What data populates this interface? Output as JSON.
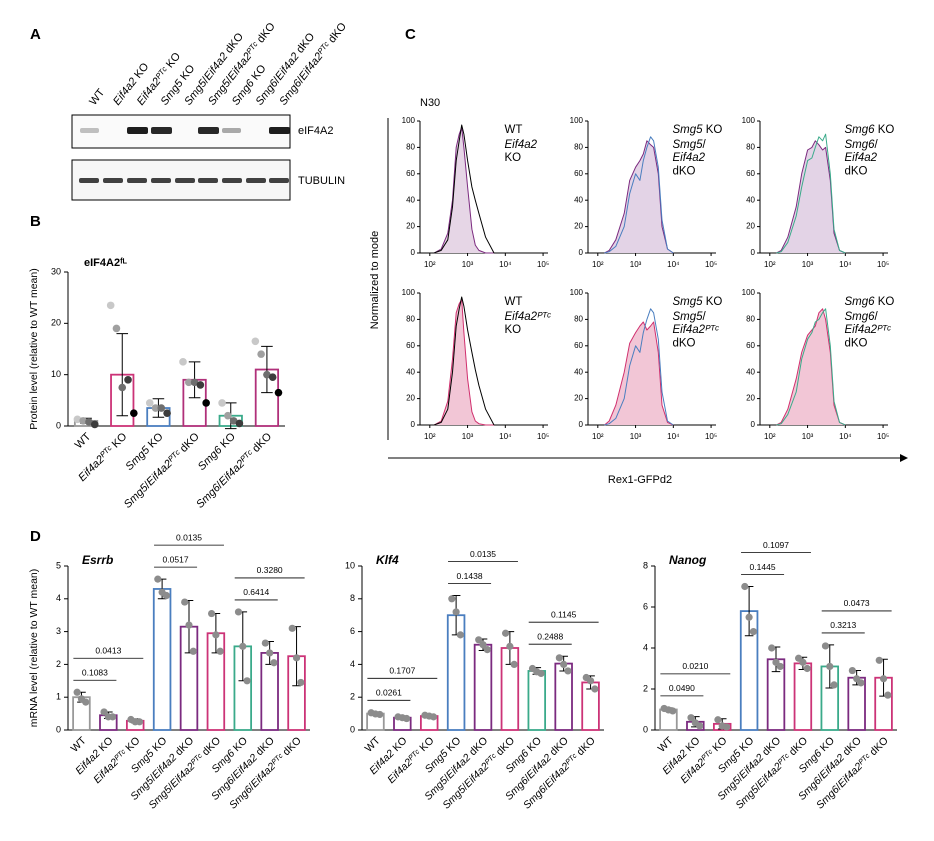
{
  "panel_labels": [
    "A",
    "B",
    "C",
    "D"
  ],
  "blot": {
    "lanes": [
      "WT",
      "Eif4a2 KO",
      "Eif4a2ᴾᵀᶜ KO",
      "Smg5 KO",
      "Smg5/Eif4a2 dKO",
      "Smg5/Eif4a2ᴾᵀᶜ dKO",
      "Smg6 KO",
      "Smg6/Eif4a2 dKO",
      "Smg6/Eif4a2ᴾᵀᶜ dKO"
    ],
    "bands": [
      "eIF4A2",
      "TUBULIN"
    ]
  },
  "flow_common": {
    "annotation": "N30",
    "y_label": "Normalized to mode",
    "x_label": "Rex1-GFPd2"
  },
  "chart_data": [
    {
      "type": "bar",
      "title": "eIF4A2ᶠᴸ",
      "y_label": "Protein level (relative to WT mean)",
      "categories": [
        "WT",
        "Eif4a2ᴾᵀᶜ KO",
        "Smg5 KO",
        "Smg5/Eif4a2ᴾᵀᶜ dKO",
        "Smg6 KO",
        "Smg6/Eif4a2ᴾᵀᶜ dKO"
      ],
      "values": [
        1,
        10,
        3.5,
        9,
        2,
        11
      ],
      "errors": [
        0.5,
        8,
        1.8,
        3.5,
        2.5,
        4.5
      ],
      "points": [
        [
          1.3,
          1,
          0.8,
          0.3
        ],
        [
          23.5,
          19,
          7.5,
          9,
          2.5
        ],
        [
          4.5,
          3.5,
          3.5,
          2.5
        ],
        [
          12.5,
          8.5,
          8.5,
          8,
          4.5
        ],
        [
          4.5,
          2,
          1,
          0.5
        ],
        [
          16.5,
          14,
          10,
          9.5,
          6.5
        ]
      ],
      "colors": [
        "#999999",
        "#cc3377",
        "#4a7ebf",
        "#b0307a",
        "#3aaa8a",
        "#b0307a"
      ],
      "point_colors": [
        "#c8c8c8",
        "#a0a0a0",
        "#6e6e6e",
        "#3c3c3c",
        "#000000"
      ],
      "ylim": [
        0,
        30
      ],
      "yticks": [
        0,
        10,
        20,
        30
      ]
    },
    {
      "type": "flow",
      "xlog": true,
      "xlim": [
        55,
        135000
      ],
      "xticks": [
        {
          "value": 100,
          "label": "10²"
        },
        {
          "value": 1000,
          "label": "10³"
        },
        {
          "value": 10000,
          "label": "10⁴"
        },
        {
          "value": 100000,
          "label": "10⁵"
        }
      ],
      "ylim": [
        0,
        100
      ],
      "yticks": [
        0,
        20,
        40,
        60,
        80,
        100
      ],
      "x": [
        130,
        200,
        300,
        400,
        500,
        600,
        700,
        800,
        1000,
        1300,
        1600,
        2000,
        3000,
        5000
      ],
      "series": [
        {
          "name": "WT",
          "color": "#000000",
          "values": [
            0,
            2,
            10,
            35,
            70,
            85,
            97,
            90,
            70,
            50,
            40,
            30,
            12,
            0
          ]
        },
        {
          "name": "Eif4a2 KO",
          "color": "#7b2a7f",
          "fill": "#e6d6e6",
          "values": [
            0,
            3,
            15,
            40,
            80,
            90,
            95,
            80,
            50,
            18,
            6,
            2,
            0,
            0
          ]
        }
      ]
    },
    {
      "type": "flow",
      "xlog": true,
      "xlim": [
        55,
        135000
      ],
      "xticks": [
        {
          "value": 100,
          "label": "10²"
        },
        {
          "value": 1000,
          "label": "10³"
        },
        {
          "value": 10000,
          "label": "10⁴"
        },
        {
          "value": 100000,
          "label": "10⁵"
        }
      ],
      "ylim": [
        0,
        100
      ],
      "yticks": [
        0,
        20,
        40,
        60,
        80,
        100
      ],
      "x": [
        150,
        200,
        300,
        500,
        700,
        1000,
        1300,
        1600,
        2000,
        2500,
        3000,
        4000,
        5000,
        7000,
        10000
      ],
      "series": [
        {
          "name": "Smg5 KO",
          "color": "#4a7ebf",
          "values": [
            0,
            1,
            5,
            20,
            45,
            60,
            55,
            70,
            80,
            88,
            85,
            65,
            25,
            3,
            0
          ]
        },
        {
          "name": "Smg5/Eif4a2 dKO",
          "color": "#7b2a7f",
          "fill": "#e3d3e6",
          "values": [
            0,
            2,
            10,
            30,
            55,
            65,
            70,
            75,
            85,
            82,
            80,
            60,
            20,
            3,
            0
          ]
        }
      ]
    },
    {
      "type": "flow",
      "xlog": true,
      "xlim": [
        55,
        135000
      ],
      "xticks": [
        {
          "value": 100,
          "label": "10²"
        },
        {
          "value": 1000,
          "label": "10³"
        },
        {
          "value": 10000,
          "label": "10⁴"
        },
        {
          "value": 100000,
          "label": "10⁵"
        }
      ],
      "ylim": [
        0,
        100
      ],
      "yticks": [
        0,
        20,
        40,
        60,
        80,
        100
      ],
      "x": [
        150,
        200,
        300,
        500,
        700,
        1000,
        1300,
        1600,
        2000,
        2500,
        3000,
        4000,
        5000,
        7000,
        10000
      ],
      "series": [
        {
          "name": "Smg6 KO",
          "color": "#3aaa8a",
          "values": [
            0,
            1,
            8,
            28,
            50,
            70,
            72,
            80,
            88,
            85,
            90,
            60,
            18,
            2,
            0
          ]
        },
        {
          "name": "Smg6/Eif4a2 dKO",
          "color": "#7b2a7f",
          "fill": "#e3d3e6",
          "values": [
            0,
            2,
            12,
            35,
            60,
            78,
            80,
            85,
            82,
            78,
            80,
            55,
            15,
            2,
            0
          ]
        }
      ]
    },
    {
      "type": "flow",
      "xlog": true,
      "xlim": [
        55,
        135000
      ],
      "xticks": [
        {
          "value": 100,
          "label": "10²"
        },
        {
          "value": 1000,
          "label": "10³"
        },
        {
          "value": 10000,
          "label": "10⁴"
        },
        {
          "value": 100000,
          "label": "10⁵"
        }
      ],
      "ylim": [
        0,
        100
      ],
      "yticks": [
        0,
        20,
        40,
        60,
        80,
        100
      ],
      "x": [
        130,
        200,
        300,
        400,
        500,
        600,
        700,
        800,
        1000,
        1300,
        1600,
        2000,
        3000,
        5000
      ],
      "series": [
        {
          "name": "WT",
          "color": "#000000",
          "values": [
            0,
            2,
            12,
            40,
            75,
            88,
            97,
            90,
            72,
            55,
            42,
            30,
            12,
            0
          ]
        },
        {
          "name": "Eif4a2ᴾᵀᶜ KO",
          "color": "#d0306e",
          "fill": "#f2c6d6",
          "values": [
            0,
            3,
            18,
            50,
            85,
            92,
            95,
            70,
            35,
            10,
            3,
            1,
            0,
            0
          ]
        }
      ]
    },
    {
      "type": "flow",
      "xlog": true,
      "xlim": [
        55,
        135000
      ],
      "xticks": [
        {
          "value": 100,
          "label": "10²"
        },
        {
          "value": 1000,
          "label": "10³"
        },
        {
          "value": 10000,
          "label": "10⁴"
        },
        {
          "value": 100000,
          "label": "10⁵"
        }
      ],
      "ylim": [
        0,
        100
      ],
      "yticks": [
        0,
        20,
        40,
        60,
        80,
        100
      ],
      "x": [
        150,
        200,
        300,
        500,
        700,
        1000,
        1300,
        1600,
        2000,
        2500,
        3000,
        4000,
        5000,
        7000,
        10000
      ],
      "series": [
        {
          "name": "Smg5 KO",
          "color": "#4a7ebf",
          "values": [
            0,
            1,
            5,
            20,
            45,
            60,
            55,
            70,
            80,
            88,
            85,
            65,
            25,
            3,
            0
          ]
        },
        {
          "name": "Smg5/Eif4a2ᴾᵀᶜ dKO",
          "color": "#d0306e",
          "fill": "#f2c6d6",
          "values": [
            0,
            3,
            15,
            40,
            62,
            70,
            75,
            78,
            72,
            75,
            78,
            55,
            15,
            2,
            0
          ]
        }
      ]
    },
    {
      "type": "flow",
      "xlog": true,
      "xlim": [
        55,
        135000
      ],
      "xticks": [
        {
          "value": 100,
          "label": "10²"
        },
        {
          "value": 1000,
          "label": "10³"
        },
        {
          "value": 10000,
          "label": "10⁴"
        },
        {
          "value": 100000,
          "label": "10⁵"
        }
      ],
      "ylim": [
        0,
        100
      ],
      "yticks": [
        0,
        20,
        40,
        60,
        80,
        100
      ],
      "x": [
        150,
        200,
        300,
        500,
        700,
        1000,
        1300,
        1600,
        2000,
        2500,
        3000,
        4000,
        5000,
        7000,
        10000
      ],
      "series": [
        {
          "name": "Smg6 KO",
          "color": "#3aaa8a",
          "values": [
            0,
            1,
            8,
            25,
            50,
            65,
            70,
            78,
            80,
            85,
            88,
            60,
            18,
            2,
            0
          ]
        },
        {
          "name": "Smg6/Eif4a2ᴾᵀᶜ dKO",
          "color": "#d0306e",
          "fill": "#f2c6d6",
          "values": [
            0,
            2,
            12,
            35,
            55,
            68,
            72,
            75,
            85,
            88,
            80,
            55,
            15,
            2,
            0
          ]
        }
      ]
    },
    {
      "type": "bar",
      "title": "Esrrb",
      "y_label": "mRNA level (relative to WT mean)",
      "categories": [
        "WT",
        "Eif4a2 KO",
        "Eif4a2ᴾᵀᶜ KO",
        "Smg5 KO",
        "Smg5/Eif4a2 dKO",
        "Smg5/Eif4a2ᴾᵀᶜ dKO",
        "Smg6 KO",
        "Smg6/Eif4a2 dKO",
        "Smg6/Eif4a2ᴾᵀᶜ dKO"
      ],
      "values": [
        1.0,
        0.45,
        0.28,
        4.3,
        3.15,
        2.95,
        2.55,
        2.35,
        2.25
      ],
      "errors": [
        0.15,
        0.1,
        0.06,
        0.3,
        0.8,
        0.6,
        1.05,
        0.35,
        0.9
      ],
      "points": [
        [
          1.15,
          0.95,
          0.85
        ],
        [
          0.55,
          0.4,
          0.4
        ],
        [
          0.32,
          0.25,
          0.25
        ],
        [
          4.6,
          4.2,
          4.1
        ],
        [
          3.9,
          3.2,
          2.4
        ],
        [
          3.55,
          2.9,
          2.4
        ],
        [
          3.6,
          2.55,
          1.5
        ],
        [
          2.65,
          2.35,
          2.05
        ],
        [
          3.1,
          2.2,
          1.45
        ]
      ],
      "colors": [
        "#999999",
        "#7b2a7f",
        "#cc3377",
        "#4a7ebf",
        "#7b2a7f",
        "#cc3377",
        "#3aaa8a",
        "#7b2a7f",
        "#cc3377"
      ],
      "point_colors": [
        "#8c8c8c"
      ],
      "ylim": [
        0,
        5
      ],
      "yticks": [
        0,
        1,
        2,
        3,
        4,
        5
      ],
      "comparisons": [
        {
          "pair": [
            0,
            1
          ],
          "p": "0.1083"
        },
        {
          "pair": [
            0,
            2
          ],
          "p": "0.0413"
        },
        {
          "pair": [
            3,
            4
          ],
          "p": "0.0517"
        },
        {
          "pair": [
            3,
            5
          ],
          "p": "0.0135"
        },
        {
          "pair": [
            6,
            7
          ],
          "p": "0.6414"
        },
        {
          "pair": [
            6,
            8
          ],
          "p": "0.3280"
        }
      ]
    },
    {
      "type": "bar",
      "title": "Klf4",
      "categories": [
        "WT",
        "Eif4a2 KO",
        "Eif4a2ᴾᵀᶜ KO",
        "Smg5 KO",
        "Smg5/Eif4a2 dKO",
        "Smg5/Eif4a2ᴾᵀᶜ dKO",
        "Smg6 KO",
        "Smg6/Eif4a2 dKO",
        "Smg6/Eif4a2ᴾᵀᶜ dKO"
      ],
      "values": [
        1.0,
        0.75,
        0.85,
        7.0,
        5.2,
        5.0,
        3.6,
        4.05,
        2.9
      ],
      "errors": [
        0.08,
        0.05,
        0.05,
        1.2,
        0.35,
        1.0,
        0.2,
        0.45,
        0.4
      ],
      "points": [
        [
          1.05,
          0.98,
          0.95
        ],
        [
          0.8,
          0.75,
          0.7
        ],
        [
          0.9,
          0.85,
          0.8
        ],
        [
          8.0,
          7.2,
          5.8
        ],
        [
          5.5,
          5.2,
          4.9
        ],
        [
          5.9,
          5.1,
          4.0
        ],
        [
          3.75,
          3.55,
          3.45
        ],
        [
          4.4,
          4.0,
          3.6
        ],
        [
          3.2,
          3.0,
          2.5
        ]
      ],
      "colors": [
        "#999999",
        "#7b2a7f",
        "#cc3377",
        "#4a7ebf",
        "#7b2a7f",
        "#cc3377",
        "#3aaa8a",
        "#7b2a7f",
        "#cc3377"
      ],
      "point_colors": [
        "#8c8c8c"
      ],
      "ylim": [
        0,
        10
      ],
      "yticks": [
        0,
        2,
        4,
        6,
        8,
        10
      ],
      "comparisons": [
        {
          "pair": [
            0,
            1
          ],
          "p": "0.0261"
        },
        {
          "pair": [
            0,
            2
          ],
          "p": "0.1707"
        },
        {
          "pair": [
            3,
            4
          ],
          "p": "0.1438"
        },
        {
          "pair": [
            3,
            5
          ],
          "p": "0.0135"
        },
        {
          "pair": [
            6,
            7
          ],
          "p": "0.2488"
        },
        {
          "pair": [
            6,
            8
          ],
          "p": "0.1145"
        }
      ]
    },
    {
      "type": "bar",
      "title": "Nanog",
      "categories": [
        "WT",
        "Eif4a2 KO",
        "Eif4a2ᴾᵀᶜ KO",
        "Smg5 KO",
        "Smg5/Eif4a2 dKO",
        "Smg5/Eif4a2ᴾᵀᶜ dKO",
        "Smg6 KO",
        "Smg6/Eif4a2 dKO",
        "Smg6/Eif4a2ᴾᵀᶜ dKO"
      ],
      "values": [
        1.0,
        0.4,
        0.3,
        5.8,
        3.45,
        3.25,
        3.1,
        2.55,
        2.55
      ],
      "errors": [
        0.08,
        0.25,
        0.25,
        1.2,
        0.6,
        0.3,
        1.05,
        0.35,
        0.9
      ],
      "points": [
        [
          1.05,
          0.98,
          0.93
        ],
        [
          0.6,
          0.35,
          0.2
        ],
        [
          0.5,
          0.2,
          0.15
        ],
        [
          7.0,
          5.5,
          4.8
        ],
        [
          4.0,
          3.3,
          3.1
        ],
        [
          3.5,
          3.3,
          3.0
        ],
        [
          4.1,
          3.1,
          2.2
        ],
        [
          2.9,
          2.5,
          2.3
        ],
        [
          3.4,
          2.5,
          1.7
        ]
      ],
      "colors": [
        "#999999",
        "#7b2a7f",
        "#cc3377",
        "#4a7ebf",
        "#7b2a7f",
        "#cc3377",
        "#3aaa8a",
        "#7b2a7f",
        "#cc3377"
      ],
      "point_colors": [
        "#8c8c8c"
      ],
      "ylim": [
        0,
        8
      ],
      "yticks": [
        0,
        2,
        4,
        6,
        8
      ],
      "comparisons": [
        {
          "pair": [
            0,
            1
          ],
          "p": "0.0490"
        },
        {
          "pair": [
            0,
            2
          ],
          "p": "0.0210"
        },
        {
          "pair": [
            3,
            4
          ],
          "p": "0.1445"
        },
        {
          "pair": [
            3,
            5
          ],
          "p": "0.1097"
        },
        {
          "pair": [
            6,
            7
          ],
          "p": "0.3213"
        },
        {
          "pair": [
            6,
            8
          ],
          "p": "0.0473"
        }
      ]
    }
  ]
}
